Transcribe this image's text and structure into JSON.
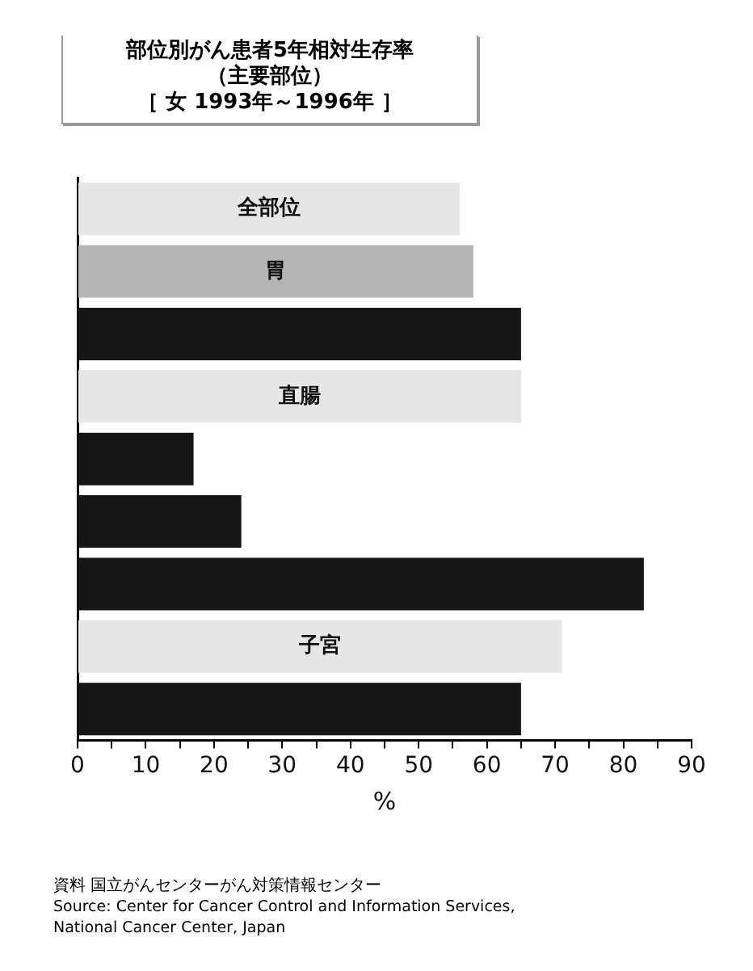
{
  "chart_data": {
    "type": "bar",
    "orientation": "horizontal",
    "title": "部位別がん患者5年相対生存率（主要部位）",
    "subtitle": "［ 女 1993年～1996年 ］",
    "xlabel": "%",
    "categories": [
      "全部位",
      "胃",
      null,
      "直腸",
      null,
      null,
      null,
      "子宮",
      null
    ],
    "values": [
      56,
      58,
      65,
      65,
      17,
      24,
      83,
      71,
      65
    ],
    "colors": [
      "#e6e6e6",
      "#b4b4b4",
      "#161616",
      "#e6e6e6",
      "#161616",
      "#161616",
      "#161616",
      "#e6e6e6",
      "#161616"
    ],
    "xlim": [
      0,
      90
    ],
    "xticks": [
      0,
      {
        "value": 5,
        "label": null
      },
      10,
      {
        "value": 15,
        "label": null
      },
      20,
      {
        "value": 25,
        "label": null
      },
      30,
      {
        "value": 35,
        "label": null
      },
      40,
      {
        "value": 45,
        "label": null
      },
      50,
      {
        "value": 55,
        "label": null
      },
      60,
      {
        "value": 65,
        "label": null
      },
      70,
      {
        "value": 75,
        "label": null
      },
      80,
      {
        "value": 85,
        "label": null
      },
      90
    ],
    "tick_labels": "x",
    "grid": false,
    "legend": false,
    "annotations": [
      "資料 国立がんセンターがん対策情報センター",
      "Source: Center for Cancer Control and Information Services,\nNational Cancer Center, Japan"
    ]
  }
}
